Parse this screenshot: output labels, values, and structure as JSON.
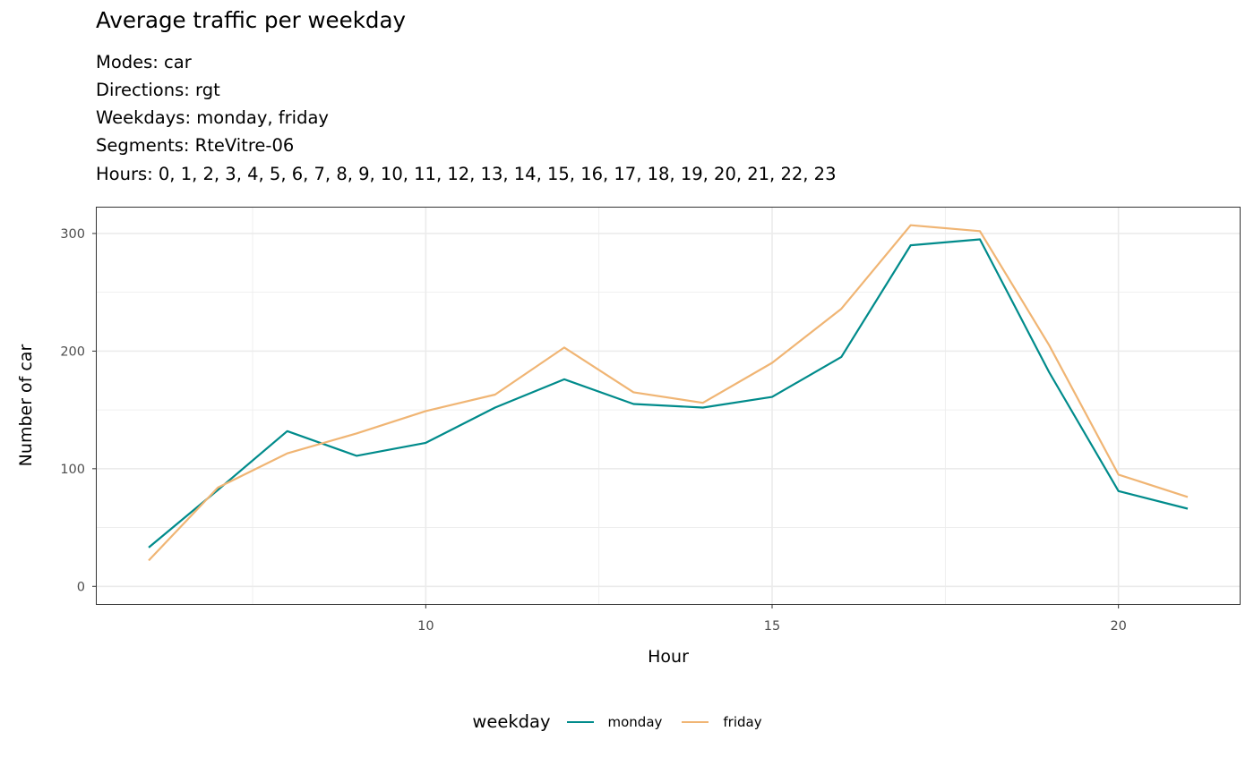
{
  "chart_data": {
    "type": "line",
    "title": "Average traffic per weekday",
    "subtitle_lines": [
      "Modes: car",
      "Directions: rgt",
      "Weekdays: monday, friday",
      "Segments: RteVitre-06",
      "Hours: 0, 1, 2, 3, 4, 5, 6, 7, 8, 9, 10, 11, 12, 13, 14, 15, 16, 17, 18, 19, 20, 21, 22, 23"
    ],
    "xlabel": "Hour",
    "ylabel": "Number of car",
    "xlim": [
      5.25,
      21.75
    ],
    "ylim": [
      -15,
      322
    ],
    "xticks": [
      10,
      15,
      20
    ],
    "yticks": [
      0,
      100,
      200,
      300
    ],
    "grid": true,
    "legend_title": "weekday",
    "legend_position": "bottom",
    "x": [
      6,
      7,
      8,
      9,
      10,
      11,
      12,
      13,
      14,
      15,
      16,
      17,
      18,
      19,
      20,
      21
    ],
    "series": [
      {
        "name": "monday",
        "color": "#008B8B",
        "values": [
          33,
          82,
          132,
          111,
          122,
          152,
          176,
          155,
          152,
          161,
          195,
          290,
          295,
          182,
          81,
          66
        ]
      },
      {
        "name": "friday",
        "color": "#F0B574",
        "values": [
          22,
          84,
          113,
          130,
          149,
          163,
          203,
          165,
          156,
          190,
          236,
          307,
          302,
          205,
          95,
          76
        ]
      }
    ]
  }
}
